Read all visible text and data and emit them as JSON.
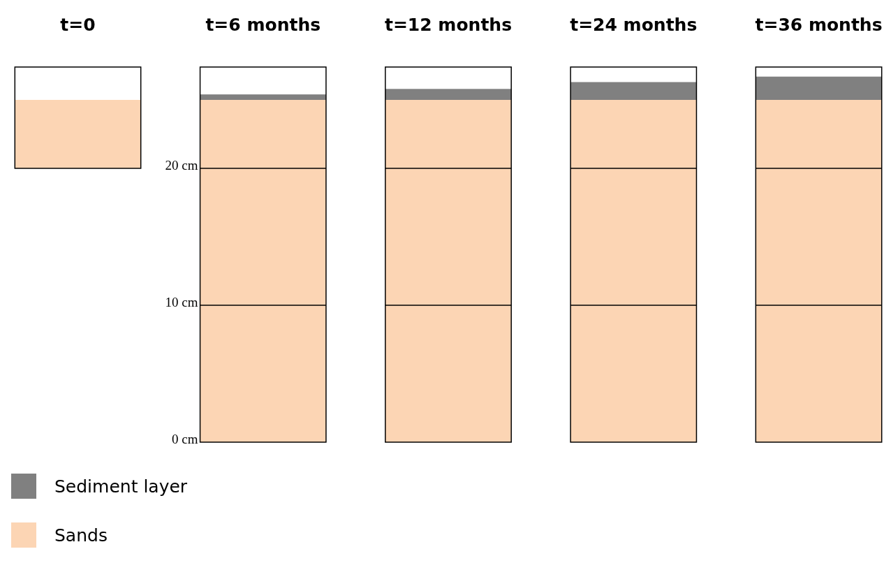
{
  "chart_data": {
    "type": "bar",
    "categories": [
      "t=0",
      "t=6 months",
      "t=12 months",
      "t=24 months",
      "t=36 months"
    ],
    "series": [
      {
        "name": "Sands",
        "color": "#fcd5b4",
        "values": [
          5,
          25,
          25,
          25,
          25
        ],
        "base": [
          20,
          0,
          0,
          0,
          0
        ]
      },
      {
        "name": "Sediment layer",
        "color": "#808080",
        "values": [
          null,
          0.4,
          0.8,
          1.3,
          1.7
        ],
        "base": [
          null,
          25,
          25,
          25,
          25
        ]
      }
    ],
    "ylim": [
      0,
      27.4
    ],
    "yticks": [
      {
        "value": 0,
        "label": "0 cm"
      },
      {
        "value": 10,
        "label": "10 cm"
      },
      {
        "value": 20,
        "label": "20 cm"
      }
    ],
    "ref_lines": [
      {
        "axis": "y",
        "value": 10,
        "color": "#000000"
      },
      {
        "axis": "y",
        "value": 20,
        "color": "#000000"
      }
    ],
    "legend": "bottom left"
  }
}
